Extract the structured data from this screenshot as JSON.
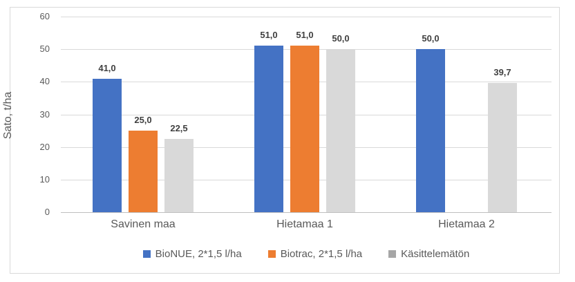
{
  "window": {
    "background": "#FFFFFF",
    "border_color": "#D9D9D9"
  },
  "chart_data": {
    "type": "bar",
    "title": "",
    "ylabel": "Sato, t/ha",
    "xlabel": "",
    "categories": [
      "Savinen maa",
      "Hietamaa 1",
      "Hietamaa 2"
    ],
    "series": [
      {
        "name": "BioNUE, 2*1,5 l/ha",
        "color": "#4472C4",
        "values": [
          41.0,
          51.0,
          50.0
        ],
        "labels": [
          "41,0",
          "51,0",
          "50,0"
        ]
      },
      {
        "name": "Biotrac, 2*1,5 l/ha",
        "color": "#ED7D31",
        "values": [
          25.0,
          51.0,
          null
        ],
        "labels": [
          "25,0",
          "51,0",
          null
        ]
      },
      {
        "name": "Käsittelemätön",
        "color": "#D9D9D9",
        "values": [
          22.5,
          50.0,
          39.7
        ],
        "labels": [
          "22,5",
          "50,0",
          "39,7"
        ]
      }
    ],
    "yticks": [
      0,
      10,
      20,
      30,
      40,
      50,
      60
    ],
    "ylim": [
      0,
      60
    ],
    "grid": true,
    "legend_position": "bottom",
    "legend": [
      {
        "label": "BioNUE, 2*1,5 l/ha",
        "marker_color": "#4472C4"
      },
      {
        "label": "Biotrac, 2*1,5 l/ha",
        "marker_color": "#ED7D31"
      },
      {
        "label": "Käsittelemätön",
        "marker_color": "#A6A6A6"
      }
    ],
    "colors": {
      "gridline": "#D9D9D9",
      "axis_line": "#BFBFBF",
      "tick_text": "#595959",
      "data_label_text": "#404040"
    }
  }
}
